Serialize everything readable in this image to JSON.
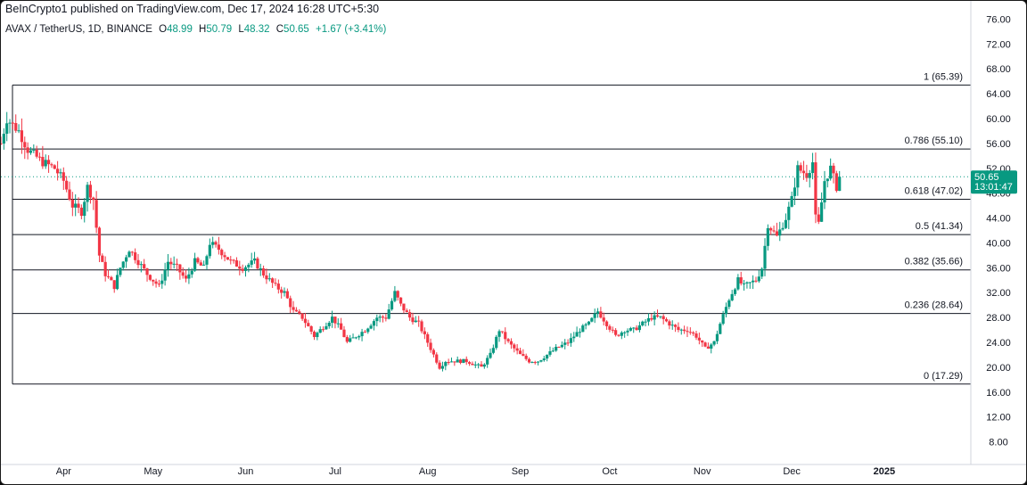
{
  "header": {
    "published": "BeInCrypto1 published on TradingView.com, Dec 17, 2024 16:28 UTC+5:30"
  },
  "symbol_bar": {
    "symbol": "AVAX / TetherUS, 1D, BINANCE",
    "o_label": "O",
    "o_value": "48.99",
    "h_label": "H",
    "h_value": "50.79",
    "l_label": "L",
    "l_value": "48.32",
    "c_label": "C",
    "c_value": "50.65",
    "change": "+1.67 (+3.41%)"
  },
  "price_badge": {
    "price": "50.65",
    "countdown": "13:01:47"
  },
  "colors": {
    "up": "#089981",
    "down": "#f23645",
    "fib_line": "#131722",
    "badge": "#089981",
    "dotted": "#089981"
  },
  "chart_data": {
    "type": "candlestick",
    "title": "AVAX / TetherUS, 1D, BINANCE",
    "y_ticks": [
      "76.00",
      "72.00",
      "68.00",
      "64.00",
      "60.00",
      "56.00",
      "52.00",
      "48.00",
      "44.00",
      "40.00",
      "36.00",
      "32.00",
      "28.00",
      "24.00",
      "20.00",
      "16.00",
      "12.00",
      "8.00"
    ],
    "y_tick_values": [
      76,
      72,
      68,
      64,
      60,
      56,
      52,
      48,
      44,
      40,
      36,
      32,
      28,
      24,
      20,
      16,
      12,
      8
    ],
    "x_ticks": [
      "Apr",
      "May",
      "Jun",
      "Jul",
      "Aug",
      "Sep",
      "Oct",
      "Nov",
      "Dec",
      "2025"
    ],
    "x_tick_dates": [
      "2024-04-01",
      "2024-05-01",
      "2024-06-01",
      "2024-07-01",
      "2024-08-01",
      "2024-09-01",
      "2024-10-01",
      "2024-11-01",
      "2024-12-01",
      "2025-01-01"
    ],
    "x_range": [
      "2024-03-11",
      "2025-01-30"
    ],
    "y_range": [
      5.5,
      77.5
    ],
    "fib_levels": [
      {
        "ratio": "1",
        "value": 65.39,
        "label": "1 (65.39)"
      },
      {
        "ratio": "0.786",
        "value": 55.1,
        "label": "0.786 (55.10)"
      },
      {
        "ratio": "0.618",
        "value": 47.02,
        "label": "0.618 (47.02)"
      },
      {
        "ratio": "0.5",
        "value": 41.34,
        "label": "0.5 (41.34)"
      },
      {
        "ratio": "0.382",
        "value": 35.66,
        "label": "0.382 (35.66)"
      },
      {
        "ratio": "0.236",
        "value": 28.64,
        "label": "0.236 (28.64)"
      },
      {
        "ratio": "0",
        "value": 17.29,
        "label": "0 (17.29)"
      }
    ],
    "fib_start_date": "2024-03-11",
    "last_close": 50.65,
    "anchors": [
      [
        "2024-03-11",
        56
      ],
      [
        "2024-03-13",
        60
      ],
      [
        "2024-03-17",
        58
      ],
      [
        "2024-03-20",
        55
      ],
      [
        "2024-03-25",
        53
      ],
      [
        "2024-03-29",
        52
      ],
      [
        "2024-04-01",
        50
      ],
      [
        "2024-04-04",
        46
      ],
      [
        "2024-04-07",
        45
      ],
      [
        "2024-04-09",
        49
      ],
      [
        "2024-04-11",
        47
      ],
      [
        "2024-04-13",
        38
      ],
      [
        "2024-04-15",
        35
      ],
      [
        "2024-04-18",
        33
      ],
      [
        "2024-04-20",
        36
      ],
      [
        "2024-04-23",
        39
      ],
      [
        "2024-04-26",
        37
      ],
      [
        "2024-04-29",
        35
      ],
      [
        "2024-05-01",
        34
      ],
      [
        "2024-05-03",
        33
      ],
      [
        "2024-05-06",
        37
      ],
      [
        "2024-05-09",
        36
      ],
      [
        "2024-05-12",
        34
      ],
      [
        "2024-05-15",
        37
      ],
      [
        "2024-05-18",
        36
      ],
      [
        "2024-05-20",
        40
      ],
      [
        "2024-05-23",
        39
      ],
      [
        "2024-05-27",
        37
      ],
      [
        "2024-05-31",
        36
      ],
      [
        "2024-06-04",
        37
      ],
      [
        "2024-06-07",
        35
      ],
      [
        "2024-06-11",
        33
      ],
      [
        "2024-06-14",
        32
      ],
      [
        "2024-06-17",
        29
      ],
      [
        "2024-06-20",
        28
      ],
      [
        "2024-06-24",
        25
      ],
      [
        "2024-06-26",
        26
      ],
      [
        "2024-06-30",
        28
      ],
      [
        "2024-07-03",
        26
      ],
      [
        "2024-07-05",
        24
      ],
      [
        "2024-07-08",
        25
      ],
      [
        "2024-07-11",
        26
      ],
      [
        "2024-07-15",
        28
      ],
      [
        "2024-07-18",
        28
      ],
      [
        "2024-07-21",
        32
      ],
      [
        "2024-07-23",
        30
      ],
      [
        "2024-07-26",
        28
      ],
      [
        "2024-07-29",
        27
      ],
      [
        "2024-08-01",
        24
      ],
      [
        "2024-08-03",
        22
      ],
      [
        "2024-08-05",
        20
      ],
      [
        "2024-08-07",
        21
      ],
      [
        "2024-08-10",
        21
      ],
      [
        "2024-08-14",
        21
      ],
      [
        "2024-08-19",
        20
      ],
      [
        "2024-08-22",
        22
      ],
      [
        "2024-08-25",
        26
      ],
      [
        "2024-08-28",
        24
      ],
      [
        "2024-09-01",
        22
      ],
      [
        "2024-09-04",
        21
      ],
      [
        "2024-09-07",
        21
      ],
      [
        "2024-09-10",
        22
      ],
      [
        "2024-09-13",
        23
      ],
      [
        "2024-09-17",
        24
      ],
      [
        "2024-09-21",
        26
      ],
      [
        "2024-09-24",
        27
      ],
      [
        "2024-09-27",
        29
      ],
      [
        "2024-09-30",
        27
      ],
      [
        "2024-10-03",
        25
      ],
      [
        "2024-10-06",
        26
      ],
      [
        "2024-10-09",
        26
      ],
      [
        "2024-10-12",
        27
      ],
      [
        "2024-10-15",
        28
      ],
      [
        "2024-10-18",
        28
      ],
      [
        "2024-10-21",
        27
      ],
      [
        "2024-10-24",
        26
      ],
      [
        "2024-10-27",
        26
      ],
      [
        "2024-10-30",
        25
      ],
      [
        "2024-11-02",
        23
      ],
      [
        "2024-11-05",
        24
      ],
      [
        "2024-11-07",
        27
      ],
      [
        "2024-11-10",
        31
      ],
      [
        "2024-11-13",
        34
      ],
      [
        "2024-11-15",
        33
      ],
      [
        "2024-11-19",
        34
      ],
      [
        "2024-11-21",
        36
      ],
      [
        "2024-11-23",
        43
      ],
      [
        "2024-11-26",
        41
      ],
      [
        "2024-11-29",
        44
      ],
      [
        "2024-12-01",
        47
      ],
      [
        "2024-12-03",
        52
      ],
      [
        "2024-12-06",
        51
      ],
      [
        "2024-12-08",
        53
      ],
      [
        "2024-12-09",
        44
      ],
      [
        "2024-12-10",
        43
      ],
      [
        "2024-12-12",
        50
      ],
      [
        "2024-12-14",
        52
      ],
      [
        "2024-12-16",
        49
      ],
      [
        "2024-12-17",
        50.65
      ]
    ]
  }
}
